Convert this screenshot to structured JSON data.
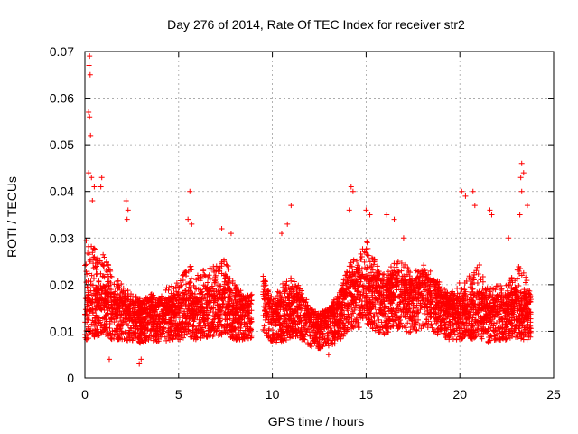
{
  "chart_data": {
    "type": "scatter",
    "title": "Day 276 of 2014, Rate Of TEC Index for receiver str2",
    "xlabel": "GPS time / hours",
    "ylabel": "ROTI / TECUs",
    "xlim": [
      0,
      25
    ],
    "ylim": [
      0,
      0.07
    ],
    "xticks": [
      0,
      5,
      10,
      15,
      20,
      25
    ],
    "xtick_labels": [
      "0",
      "5",
      "10",
      "15",
      "20",
      "25"
    ],
    "yticks": [
      0,
      0.01,
      0.02,
      0.03,
      0.04,
      0.05,
      0.06,
      0.07
    ],
    "ytick_labels": [
      "0",
      "0.01",
      "0.02",
      "0.03",
      "0.04",
      "0.05",
      "0.06",
      "0.07"
    ],
    "grid": true,
    "marker": "plus",
    "color": "#ff0000",
    "series": [
      {
        "name": "ROTI",
        "profile_hours": [
          0,
          0.5,
          1,
          1.5,
          2,
          2.5,
          3,
          3.5,
          4,
          4.5,
          5,
          5.5,
          6,
          6.5,
          7,
          7.5,
          8,
          8.5,
          8.9,
          9.2,
          9.5,
          10,
          10.5,
          11,
          11.5,
          12,
          12.5,
          13,
          13.5,
          14,
          14.5,
          15,
          15.5,
          16,
          16.5,
          17,
          17.5,
          18,
          18.5,
          19,
          19.5,
          20,
          20.5,
          21,
          21.5,
          22,
          22.5,
          23,
          23.5,
          23.8
        ],
        "profile_median": [
          0.013,
          0.014,
          0.015,
          0.013,
          0.013,
          0.012,
          0.012,
          0.013,
          0.012,
          0.013,
          0.013,
          0.014,
          0.013,
          0.014,
          0.014,
          0.015,
          0.013,
          0.013,
          0.013,
          null,
          0.016,
          0.012,
          0.012,
          0.014,
          0.013,
          0.011,
          0.01,
          0.011,
          0.012,
          0.016,
          0.017,
          0.017,
          0.016,
          0.015,
          0.017,
          0.016,
          0.015,
          0.017,
          0.016,
          0.014,
          0.013,
          0.013,
          0.013,
          0.014,
          0.012,
          0.013,
          0.013,
          0.014,
          0.013,
          0.013
        ],
        "profile_upper": [
          0.03,
          0.028,
          0.027,
          0.022,
          0.02,
          0.018,
          0.017,
          0.018,
          0.018,
          0.02,
          0.021,
          0.025,
          0.022,
          0.024,
          0.024,
          0.026,
          0.02,
          0.018,
          0.018,
          null,
          0.022,
          0.017,
          0.02,
          0.022,
          0.02,
          0.015,
          0.014,
          0.015,
          0.018,
          0.024,
          0.026,
          0.03,
          0.025,
          0.022,
          0.025,
          0.025,
          0.022,
          0.025,
          0.023,
          0.02,
          0.018,
          0.021,
          0.022,
          0.025,
          0.019,
          0.02,
          0.02,
          0.025,
          0.022,
          0.018
        ],
        "spikes": [
          {
            "x": 0.25,
            "y": 0.069
          },
          {
            "x": 0.22,
            "y": 0.067
          },
          {
            "x": 0.28,
            "y": 0.065
          },
          {
            "x": 0.2,
            "y": 0.057
          },
          {
            "x": 0.25,
            "y": 0.056
          },
          {
            "x": 0.3,
            "y": 0.052
          },
          {
            "x": 0.2,
            "y": 0.044
          },
          {
            "x": 0.35,
            "y": 0.043
          },
          {
            "x": 0.5,
            "y": 0.041
          },
          {
            "x": 0.9,
            "y": 0.043
          },
          {
            "x": 0.85,
            "y": 0.041
          },
          {
            "x": 0.4,
            "y": 0.038
          },
          {
            "x": 2.2,
            "y": 0.038
          },
          {
            "x": 2.3,
            "y": 0.036
          },
          {
            "x": 2.25,
            "y": 0.034
          },
          {
            "x": 5.6,
            "y": 0.04
          },
          {
            "x": 5.5,
            "y": 0.034
          },
          {
            "x": 5.7,
            "y": 0.033
          },
          {
            "x": 7.3,
            "y": 0.032
          },
          {
            "x": 7.8,
            "y": 0.031
          },
          {
            "x": 11.0,
            "y": 0.037
          },
          {
            "x": 10.8,
            "y": 0.033
          },
          {
            "x": 10.5,
            "y": 0.031
          },
          {
            "x": 14.2,
            "y": 0.041
          },
          {
            "x": 14.3,
            "y": 0.04
          },
          {
            "x": 14.1,
            "y": 0.036
          },
          {
            "x": 15.0,
            "y": 0.036
          },
          {
            "x": 15.2,
            "y": 0.035
          },
          {
            "x": 16.1,
            "y": 0.035
          },
          {
            "x": 16.5,
            "y": 0.034
          },
          {
            "x": 17.0,
            "y": 0.03
          },
          {
            "x": 20.1,
            "y": 0.04
          },
          {
            "x": 20.3,
            "y": 0.039
          },
          {
            "x": 20.7,
            "y": 0.04
          },
          {
            "x": 20.8,
            "y": 0.037
          },
          {
            "x": 21.6,
            "y": 0.036
          },
          {
            "x": 21.7,
            "y": 0.035
          },
          {
            "x": 23.3,
            "y": 0.046
          },
          {
            "x": 23.4,
            "y": 0.044
          },
          {
            "x": 23.25,
            "y": 0.043
          },
          {
            "x": 23.3,
            "y": 0.04
          },
          {
            "x": 23.6,
            "y": 0.037
          },
          {
            "x": 23.2,
            "y": 0.035
          },
          {
            "x": 22.6,
            "y": 0.03
          },
          {
            "x": 2.9,
            "y": 0.003
          },
          {
            "x": 1.3,
            "y": 0.004
          },
          {
            "x": 3.0,
            "y": 0.004
          },
          {
            "x": 13.0,
            "y": 0.005
          }
        ]
      }
    ]
  }
}
